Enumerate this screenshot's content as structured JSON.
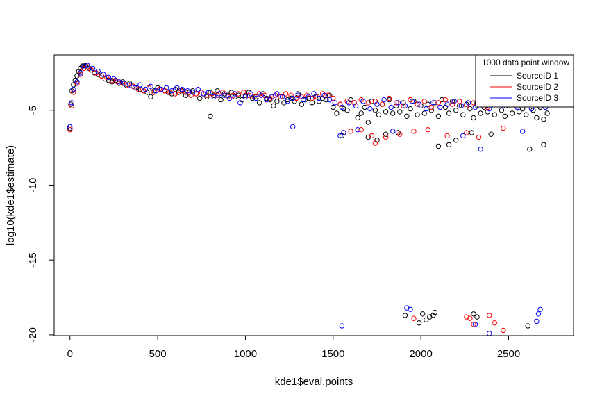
{
  "chart_data": {
    "type": "scatter",
    "title": "",
    "xlabel": "kde1$eval.points",
    "ylabel": "log10(kde1$estimate)",
    "xlim": [
      -90,
      2870
    ],
    "ylim": [
      -20.05,
      -1.3
    ],
    "xticks": [
      0,
      500,
      1000,
      1500,
      2000,
      2500
    ],
    "xtick_labels": [
      "0",
      "500",
      "1000",
      "1500",
      "2000",
      "2500"
    ],
    "yticks": [
      -20,
      -15,
      -10,
      -5
    ],
    "ytick_labels": [
      "-20",
      "-15",
      "-10",
      "-5"
    ],
    "grid": false,
    "marker": "open-circle",
    "legend": {
      "title": "1000 data point window",
      "position": "top-right",
      "entries": [
        {
          "label": "SourceID 1",
          "color": "#000000"
        },
        {
          "label": "SourceID 2",
          "color": "#ff0000"
        },
        {
          "label": "SourceID 3",
          "color": "#0000ff"
        }
      ]
    },
    "series": [
      {
        "name": "SourceID 1",
        "color": "#000000",
        "x": [
          0,
          5,
          10,
          20,
          30,
          40,
          50,
          60,
          70,
          80,
          90,
          100,
          110,
          120,
          140,
          160,
          180,
          200,
          220,
          240,
          260,
          280,
          300,
          320,
          340,
          360,
          380,
          400,
          420,
          440,
          460,
          480,
          500,
          520,
          540,
          560,
          580,
          600,
          620,
          640,
          660,
          680,
          700,
          720,
          740,
          760,
          780,
          800,
          820,
          840,
          860,
          880,
          900,
          920,
          940,
          960,
          980,
          1000,
          1020,
          1040,
          1060,
          1080,
          1100,
          1120,
          1140,
          1160,
          1180,
          1200,
          1220,
          1240,
          1260,
          1280,
          1300,
          1320,
          1340,
          1360,
          1380,
          1400,
          1420,
          1440,
          1460,
          1480,
          1500,
          1520,
          1540,
          1560,
          1580,
          1600,
          1620,
          1640,
          1660,
          1680,
          1700,
          1720,
          1740,
          1760,
          1780,
          1800,
          1820,
          1840,
          1860,
          1880,
          1900,
          1920,
          1940,
          1960,
          1980,
          2000,
          2020,
          2040,
          2060,
          2080,
          2100,
          2120,
          2140,
          2160,
          2180,
          2200,
          2220,
          2240,
          2260,
          2280,
          2300,
          2320,
          2340,
          2360,
          2380,
          2400,
          2420,
          2440,
          2460,
          2480,
          2500,
          2520,
          2540,
          2560,
          2580,
          2600,
          2620,
          2640,
          2660,
          2680,
          2700,
          2720,
          800,
          1550,
          1700,
          1750,
          1800,
          1870,
          2100,
          2160,
          2200,
          2290,
          2400,
          2620,
          2700,
          1910,
          1990,
          2010,
          2030,
          2050,
          2070,
          2080,
          2300,
          2320,
          2610
        ],
        "y": [
          -6.2,
          -4.6,
          -3.7,
          -3.3,
          -3.0,
          -2.7,
          -2.4,
          -2.2,
          -2.05,
          -2.0,
          -2.02,
          -2.1,
          -2.2,
          -2.3,
          -2.5,
          -2.6,
          -2.7,
          -2.9,
          -3.0,
          -3.1,
          -3.0,
          -3.2,
          -3.1,
          -3.3,
          -3.2,
          -3.4,
          -3.5,
          -3.6,
          -3.7,
          -3.8,
          -4.1,
          -3.7,
          -3.5,
          -3.6,
          -3.7,
          -3.8,
          -3.9,
          -3.6,
          -3.8,
          -3.7,
          -4.0,
          -3.8,
          -3.7,
          -3.9,
          -4.2,
          -3.9,
          -4.1,
          -3.8,
          -4.0,
          -3.7,
          -4.3,
          -3.9,
          -4.0,
          -3.8,
          -4.1,
          -4.0,
          -4.3,
          -4.0,
          -3.8,
          -4.2,
          -4.1,
          -4.5,
          -3.9,
          -4.2,
          -4.3,
          -4.7,
          -4.4,
          -4.1,
          -4.5,
          -4.3,
          -4.2,
          -4.4,
          -3.9,
          -4.6,
          -4.3,
          -4.2,
          -4.5,
          -4.1,
          -4.4,
          -4.2,
          -4.3,
          -4.0,
          -4.8,
          -5.2,
          -4.6,
          -4.9,
          -5.0,
          -4.3,
          -4.5,
          -5.5,
          -5.2,
          -4.8,
          -5.8,
          -4.4,
          -5.0,
          -5.3,
          -4.6,
          -5.1,
          -4.3,
          -5.2,
          -4.7,
          -5.1,
          -4.5,
          -5.4,
          -4.9,
          -4.4,
          -5.3,
          -4.7,
          -5.2,
          -4.6,
          -5.0,
          -4.5,
          -5.4,
          -4.3,
          -4.8,
          -5.2,
          -4.4,
          -5.0,
          -4.7,
          -5.3,
          -4.6,
          -4.9,
          -5.5,
          -4.5,
          -5.2,
          -4.8,
          -5.1,
          -4.4,
          -5.3,
          -4.6,
          -5.0,
          -5.4,
          -4.7,
          -5.2,
          -4.5,
          -5.1,
          -4.9,
          -5.3,
          -4.6,
          -5.0,
          -5.5,
          -4.8,
          -5.6,
          -5.2,
          -5.4,
          -6.7,
          -6.8,
          -7.0,
          -6.6,
          -6.5,
          -7.4,
          -7.3,
          -7.0,
          -6.5,
          -6.6,
          -7.6,
          -7.3,
          -18.7,
          -19.2,
          -18.6,
          -19.0,
          -18.8,
          -18.7,
          -18.5,
          -18.6,
          -18.8,
          -19.4
        ]
      },
      {
        "name": "SourceID 2",
        "color": "#ff0000",
        "x": [
          0,
          10,
          20,
          40,
          60,
          80,
          100,
          120,
          150,
          180,
          210,
          240,
          270,
          300,
          330,
          360,
          390,
          420,
          450,
          480,
          510,
          540,
          570,
          600,
          630,
          660,
          690,
          720,
          750,
          780,
          810,
          840,
          870,
          900,
          930,
          960,
          990,
          1020,
          1050,
          1080,
          1110,
          1140,
          1170,
          1200,
          1230,
          1260,
          1290,
          1320,
          1350,
          1380,
          1410,
          1440,
          1470,
          1500,
          1540,
          1580,
          1620,
          1660,
          1700,
          1740,
          1780,
          1820,
          1860,
          1900,
          1940,
          1980,
          2020,
          2060,
          2100,
          2140,
          2180,
          2220,
          2260,
          2300,
          2340,
          2380,
          2420,
          2460,
          2500,
          2540,
          2580,
          1560,
          1600,
          1660,
          1720,
          1740,
          1800,
          1880,
          1960,
          2040,
          2150,
          2260,
          2330,
          2470,
          1960,
          2260,
          2280,
          2300,
          2390,
          2420,
          2470
        ],
        "y": [
          -6.3,
          -4.7,
          -3.8,
          -3.2,
          -2.6,
          -2.2,
          -2.1,
          -2.3,
          -2.5,
          -2.7,
          -2.8,
          -3.0,
          -3.1,
          -3.2,
          -3.3,
          -3.4,
          -3.6,
          -3.7,
          -3.5,
          -3.8,
          -3.6,
          -3.7,
          -3.8,
          -3.9,
          -3.7,
          -3.8,
          -4.0,
          -3.9,
          -3.8,
          -4.0,
          -3.9,
          -4.0,
          -3.8,
          -4.1,
          -4.0,
          -3.9,
          -3.8,
          -4.0,
          -4.1,
          -3.9,
          -4.0,
          -4.2,
          -4.0,
          -4.1,
          -3.9,
          -4.0,
          -4.2,
          -4.1,
          -4.0,
          -4.2,
          -4.1,
          -3.9,
          -4.0,
          -4.2,
          -4.6,
          -4.4,
          -4.5,
          -4.3,
          -4.5,
          -4.4,
          -4.6,
          -4.2,
          -4.5,
          -4.7,
          -4.3,
          -4.6,
          -4.4,
          -4.8,
          -4.5,
          -4.3,
          -4.6,
          -4.4,
          -4.7,
          -4.5,
          -4.3,
          -4.8,
          -4.4,
          -4.6,
          -4.5,
          -4.7,
          -4.4,
          -6.5,
          -6.4,
          -6.3,
          -6.7,
          -7.2,
          -6.8,
          -6.6,
          -6.4,
          -6.3,
          -6.7,
          -6.5,
          -6.8,
          -6.2,
          -18.9,
          -18.8,
          -18.9,
          -19.3,
          -18.7,
          -19.2,
          -19.7
        ]
      },
      {
        "name": "SourceID 3",
        "color": "#0000ff",
        "x": [
          0,
          10,
          20,
          40,
          60,
          80,
          100,
          130,
          160,
          190,
          220,
          250,
          280,
          310,
          340,
          370,
          400,
          430,
          460,
          490,
          520,
          550,
          580,
          610,
          640,
          670,
          700,
          730,
          760,
          790,
          820,
          850,
          880,
          910,
          940,
          970,
          1000,
          1030,
          1060,
          1090,
          1120,
          1150,
          1180,
          1210,
          1240,
          1270,
          1300,
          1330,
          1360,
          1390,
          1420,
          1450,
          1480,
          1510,
          1550,
          1590,
          1630,
          1670,
          1710,
          1750,
          1790,
          1830,
          1870,
          1910,
          1950,
          1990,
          2030,
          2070,
          2110,
          2150,
          2190,
          2230,
          2270,
          2310,
          2350,
          2390,
          2430,
          2470,
          2510,
          2550,
          2590,
          2630,
          2670,
          2710,
          1270,
          1540,
          1560,
          1640,
          1840,
          2240,
          2340,
          2580,
          1550,
          1920,
          1940,
          2310,
          2390,
          2660,
          2670,
          2680
        ],
        "y": [
          -6.1,
          -4.5,
          -3.6,
          -3.1,
          -2.5,
          -2.1,
          -2.0,
          -2.2,
          -2.4,
          -2.6,
          -2.8,
          -2.9,
          -3.1,
          -3.2,
          -3.3,
          -3.5,
          -3.3,
          -3.6,
          -3.4,
          -3.7,
          -3.6,
          -3.5,
          -3.7,
          -3.5,
          -3.6,
          -3.7,
          -3.8,
          -3.6,
          -3.9,
          -3.8,
          -4.1,
          -3.9,
          -4.0,
          -4.2,
          -3.9,
          -4.5,
          -4.1,
          -3.9,
          -4.2,
          -4.0,
          -4.3,
          -4.1,
          -3.9,
          -4.1,
          -4.4,
          -4.2,
          -4.0,
          -4.3,
          -4.1,
          -3.9,
          -4.2,
          -4.0,
          -4.3,
          -4.5,
          -4.8,
          -4.5,
          -4.7,
          -4.4,
          -4.9,
          -4.6,
          -4.3,
          -4.8,
          -4.5,
          -4.7,
          -4.4,
          -4.6,
          -4.9,
          -4.5,
          -4.8,
          -4.6,
          -4.4,
          -4.7,
          -4.5,
          -4.8,
          -4.6,
          -4.9,
          -4.5,
          -4.7,
          -4.6,
          -4.8,
          -4.4,
          -4.9,
          -4.6,
          -4.8,
          -6.1,
          -6.7,
          -6.5,
          -6.3,
          -6.4,
          -6.7,
          -7.6,
          -6.4,
          -19.4,
          -18.2,
          -18.3,
          -19.3,
          -19.9,
          -19.1,
          -18.6,
          -18.3
        ]
      }
    ]
  }
}
